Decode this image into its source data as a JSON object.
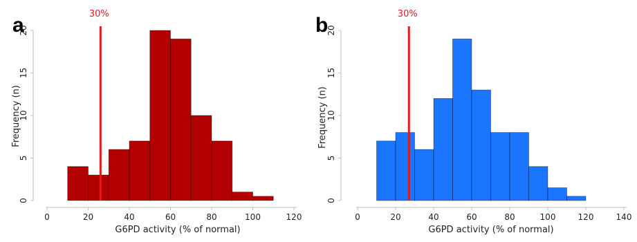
{
  "chart_data": [
    {
      "panel": "a",
      "type": "bar",
      "xlabel": "G6PD activity (% of normal)",
      "ylabel": "Frequency (n)",
      "xlim": [
        0,
        120
      ],
      "ylim": [
        0,
        20
      ],
      "xticks": [
        0,
        20,
        40,
        60,
        80,
        100,
        120
      ],
      "yticks": [
        0,
        5,
        10,
        15,
        20
      ],
      "grid": false,
      "color": "#b20000",
      "bins": [
        {
          "x0": 10,
          "x1": 20,
          "value": 4
        },
        {
          "x0": 20,
          "x1": 30,
          "value": 3
        },
        {
          "x0": 30,
          "x1": 40,
          "value": 6
        },
        {
          "x0": 40,
          "x1": 50,
          "value": 7
        },
        {
          "x0": 50,
          "x1": 60,
          "value": 20
        },
        {
          "x0": 60,
          "x1": 70,
          "value": 19
        },
        {
          "x0": 70,
          "x1": 80,
          "value": 10
        },
        {
          "x0": 80,
          "x1": 90,
          "value": 7
        },
        {
          "x0": 90,
          "x1": 100,
          "value": 1
        },
        {
          "x0": 100,
          "x1": 110,
          "value": 0.5
        }
      ],
      "threshold": {
        "value": 26,
        "label": "30%",
        "color": "#e01a1a"
      }
    },
    {
      "panel": "b",
      "type": "bar",
      "xlabel": "G6PD activity (% of normal)",
      "ylabel": "Frequency (n)",
      "xlim": [
        0,
        140
      ],
      "ylim": [
        0,
        20
      ],
      "xticks": [
        0,
        20,
        40,
        60,
        80,
        100,
        120,
        140
      ],
      "yticks": [
        0,
        5,
        10,
        15,
        20
      ],
      "grid": false,
      "color": "#1a75ff",
      "bins": [
        {
          "x0": 10,
          "x1": 20,
          "value": 7
        },
        {
          "x0": 20,
          "x1": 30,
          "value": 8
        },
        {
          "x0": 30,
          "x1": 40,
          "value": 6
        },
        {
          "x0": 40,
          "x1": 50,
          "value": 12
        },
        {
          "x0": 50,
          "x1": 60,
          "value": 19
        },
        {
          "x0": 60,
          "x1": 70,
          "value": 13
        },
        {
          "x0": 70,
          "x1": 80,
          "value": 8
        },
        {
          "x0": 80,
          "x1": 90,
          "value": 8
        },
        {
          "x0": 90,
          "x1": 100,
          "value": 4
        },
        {
          "x0": 100,
          "x1": 110,
          "value": 1.5
        },
        {
          "x0": 110,
          "x1": 120,
          "value": 0.5
        }
      ],
      "threshold": {
        "value": 27,
        "label": "30%",
        "color": "#e01a1a"
      }
    }
  ]
}
